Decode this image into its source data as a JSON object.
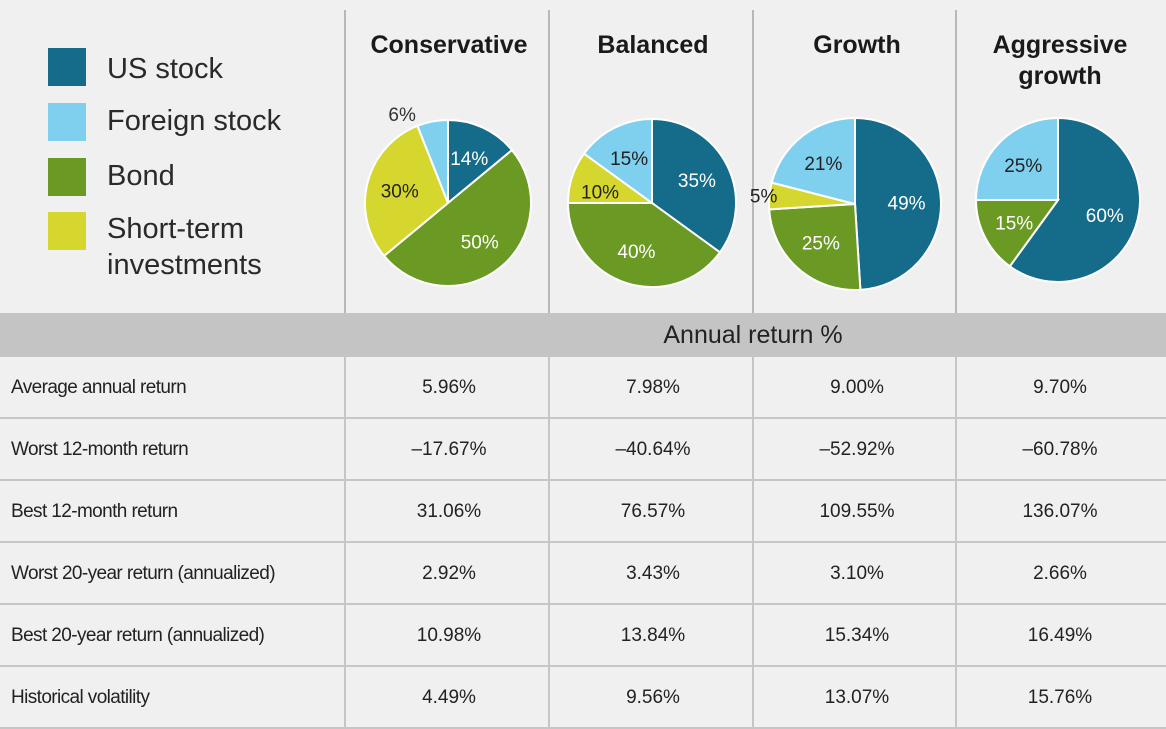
{
  "legend": [
    {
      "label": "US stock",
      "color": "#156b8a"
    },
    {
      "label": "Foreign stock",
      "color": "#7fd0ef"
    },
    {
      "label": "Bond",
      "color": "#6b9a24"
    },
    {
      "label": "Short-term investments",
      "label_lines": [
        "Short-term",
        "investments"
      ],
      "color": "#d5d72e"
    }
  ],
  "section_title": "Annual return %",
  "chart_data": [
    {
      "type": "pie",
      "title": "Conservative",
      "labels": [
        "US stock",
        "Bond",
        "Short-term investments",
        "Foreign stock"
      ],
      "values": [
        14,
        50,
        30,
        6
      ],
      "colors": [
        "#156b8a",
        "#6b9a24",
        "#d5d72e",
        "#7fd0ef"
      ]
    },
    {
      "type": "pie",
      "title": "Balanced",
      "labels": [
        "US stock",
        "Bond",
        "Short-term investments",
        "Foreign stock"
      ],
      "values": [
        35,
        40,
        10,
        15
      ],
      "colors": [
        "#156b8a",
        "#6b9a24",
        "#d5d72e",
        "#7fd0ef"
      ]
    },
    {
      "type": "pie",
      "title": "Growth",
      "labels": [
        "US stock",
        "Bond",
        "Short-term investments",
        "Foreign stock"
      ],
      "values": [
        49,
        25,
        5,
        21
      ],
      "colors": [
        "#156b8a",
        "#6b9a24",
        "#d5d72e",
        "#7fd0ef"
      ]
    },
    {
      "type": "pie",
      "title": "Aggressive growth",
      "title_lines": [
        "Aggressive",
        "growth"
      ],
      "labels": [
        "US stock",
        "Bond",
        "Foreign stock"
      ],
      "values": [
        60,
        15,
        25
      ],
      "colors": [
        "#156b8a",
        "#6b9a24",
        "#7fd0ef"
      ]
    },
    {
      "type": "table",
      "columns": [
        "Conservative",
        "Balanced",
        "Growth",
        "Aggressive growth"
      ],
      "rows": [
        {
          "label": "Average annual return",
          "values": [
            "5.96%",
            "7.98%",
            "9.00%",
            "9.70%"
          ]
        },
        {
          "label": "Worst 12-month return",
          "values": [
            "–17.67%",
            "–40.64%",
            "–52.92%",
            "–60.78%"
          ]
        },
        {
          "label": "Best 12-month return",
          "values": [
            "31.06%",
            "76.57%",
            "109.55%",
            "136.07%"
          ]
        },
        {
          "label": "Worst 20-year return (annualized)",
          "values": [
            "2.92%",
            "3.43%",
            "3.10%",
            "2.66%"
          ]
        },
        {
          "label": "Best 20-year return (annualized)",
          "values": [
            "10.98%",
            "13.84%",
            "15.34%",
            "16.49%"
          ]
        },
        {
          "label": "Historical volatility",
          "values": [
            "4.49%",
            "9.56%",
            "13.07%",
            "15.76%"
          ]
        }
      ]
    }
  ]
}
